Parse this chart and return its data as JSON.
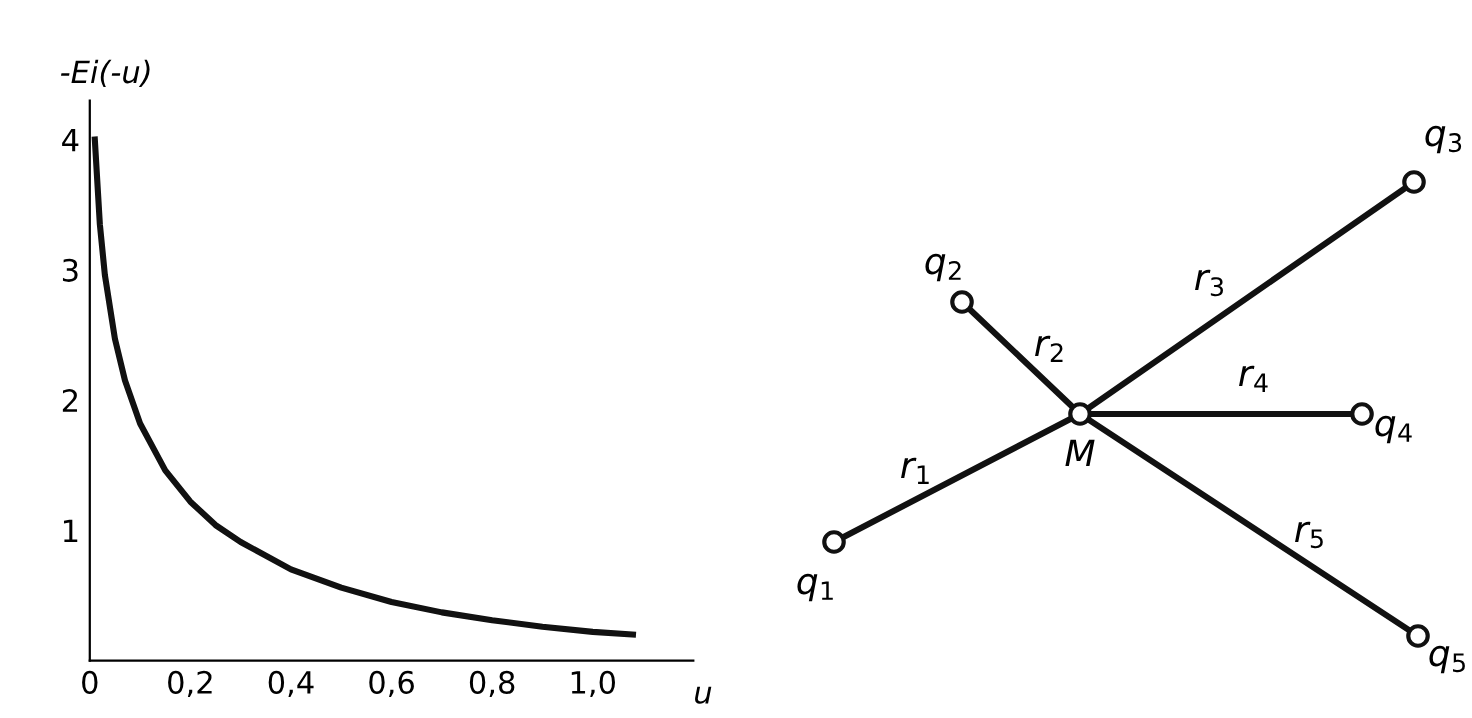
{
  "chart_data": [
    {
      "type": "line",
      "ylabel": "-Ei(-u)",
      "xlabel": "u",
      "x": [
        0.01,
        0.02,
        0.03,
        0.05,
        0.07,
        0.1,
        0.15,
        0.2,
        0.25,
        0.3,
        0.4,
        0.5,
        0.6,
        0.7,
        0.8,
        0.9,
        1.0,
        1.08
      ],
      "series": [
        {
          "color": "#111111",
          "values": [
            4.0,
            3.35,
            2.96,
            2.47,
            2.15,
            1.82,
            1.46,
            1.22,
            1.04,
            0.91,
            0.7,
            0.56,
            0.45,
            0.37,
            0.31,
            0.26,
            0.22,
            0.2
          ]
        }
      ],
      "xlim": [
        0,
        1.2
      ],
      "ylim": [
        0,
        4.3
      ],
      "xticks": [
        0,
        {
          "value": 0.2,
          "label": "0,2"
        },
        {
          "value": 0.4,
          "label": "0,4"
        },
        {
          "value": 0.6,
          "label": "0,6"
        },
        {
          "value": 0.8,
          "label": "0,8"
        },
        {
          "value": 1.0,
          "label": "1,0"
        }
      ],
      "yticks": [
        1,
        2,
        3,
        4
      ],
      "grid": false,
      "line_style": "solid",
      "marker": "none"
    },
    {
      "type": "other",
      "annotations": [
        "q$_{1}$",
        "q$_{2}$",
        "q$_{3}$",
        "q$_{4}$",
        "q$_{5}$",
        "r$_{1}$",
        "r$_{2}$",
        "r$_{3}$",
        "r$_{4}$",
        "r$_{5}$",
        "M"
      ]
    }
  ]
}
